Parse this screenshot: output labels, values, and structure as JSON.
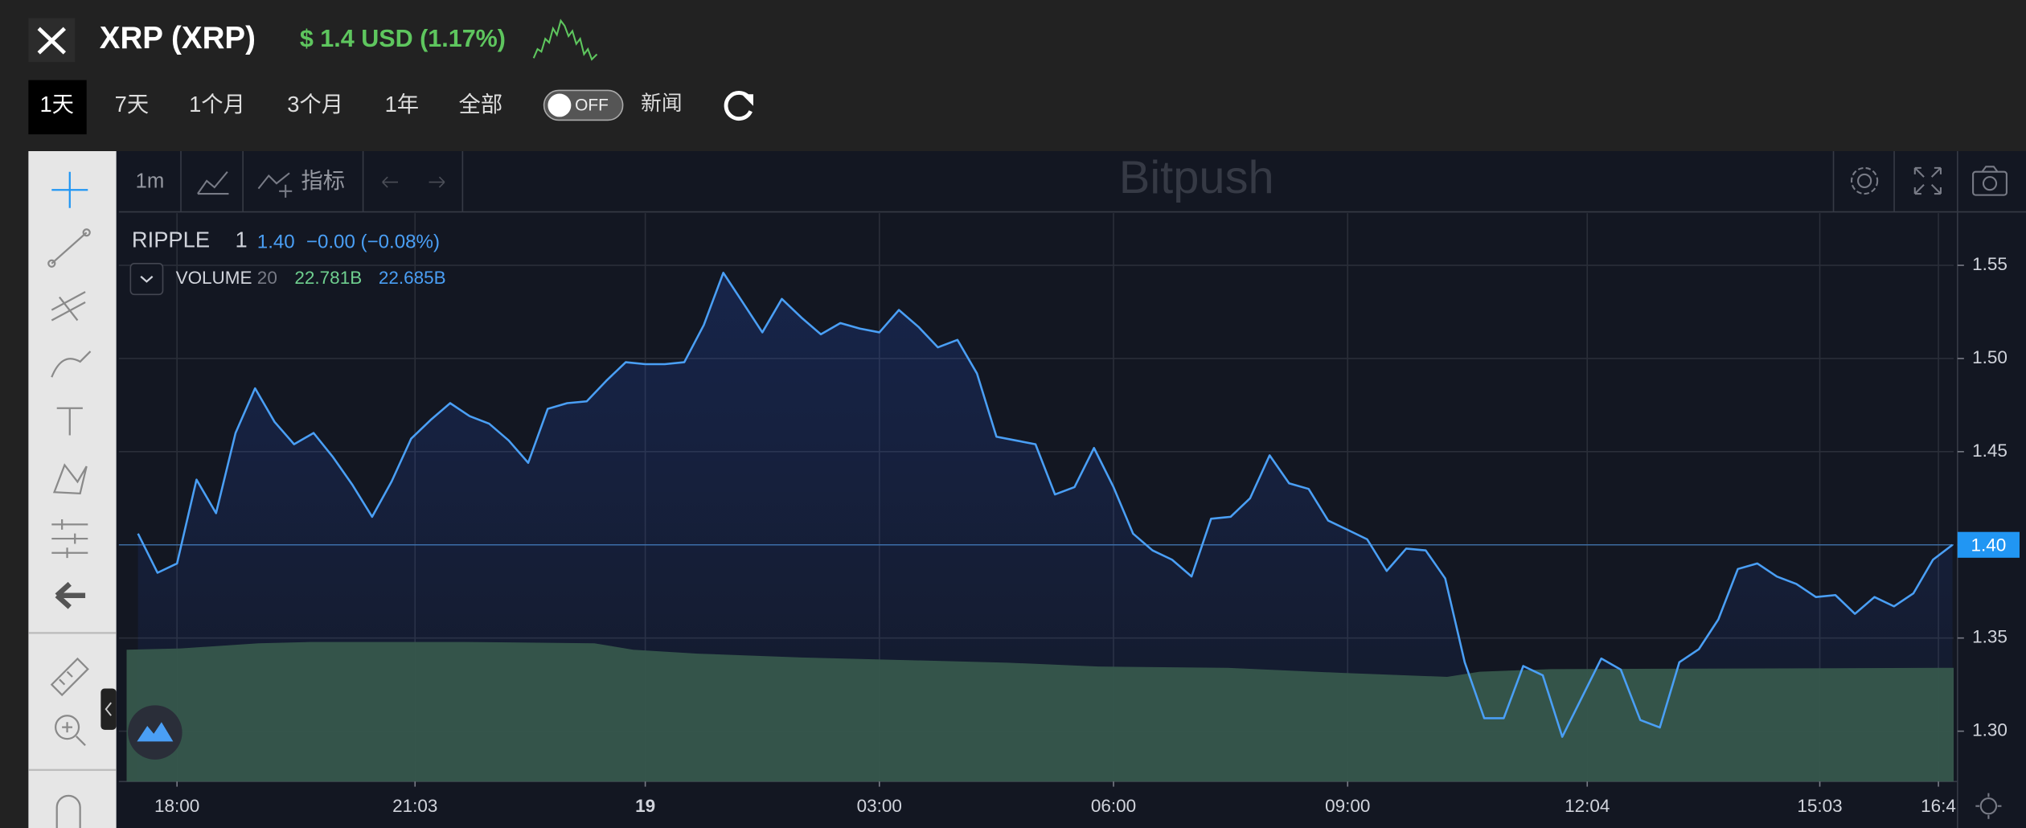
{
  "header": {
    "title": "XRP (XRP)",
    "price": "$ 1.4 USD (1.17%)"
  },
  "tabs": [
    "1天",
    "7天",
    "1个月",
    "3个月",
    "1年",
    "全部"
  ],
  "toggle": "OFF",
  "news": "新闻",
  "toolbar": {
    "interval": "1m",
    "indicators": "指标",
    "watermark": "Bitpush"
  },
  "legend": {
    "resolution": "1",
    "last": "1.40",
    "change": "−0.00 (−0.08%)",
    "volume": "VOLUME",
    "volume_period": "20",
    "volume_value": "22.781B",
    "volume_ma": "22.685B"
  },
  "chart_data": {
    "type": "line",
    "x": [
      17.5,
      17.75,
      18,
      18.25,
      18.5,
      18.75,
      19,
      19.25,
      19.5,
      19.75,
      20,
      20.25,
      20.5,
      20.75,
      21,
      21.25,
      21.5,
      21.75,
      22,
      22.25,
      22.5,
      22.75,
      23,
      23.25,
      23.5,
      23.75,
      24,
      24.25,
      24.5,
      24.75,
      25,
      25.25,
      25.5,
      25.75,
      26,
      26.25,
      26.5,
      26.75,
      27,
      27.25,
      27.5,
      27.75,
      28,
      28.25,
      28.5,
      28.75,
      29,
      29.25,
      29.5,
      29.75,
      30,
      30.25,
      30.5,
      30.75,
      31,
      31.25,
      31.5,
      31.75,
      32,
      32.25,
      32.5,
      32.75,
      33,
      33.25,
      33.5,
      33.75,
      34,
      34.25,
      34.5,
      34.75,
      35,
      35.25,
      35.5,
      35.75,
      36,
      36.25,
      36.5,
      36.75,
      37,
      37.25,
      37.5,
      37.75,
      38,
      38.25,
      38.5,
      38.75,
      39,
      39.25,
      39.5,
      39.75,
      40,
      40.25,
      40.5,
      40.75
    ],
    "series": [
      {
        "name": "RIPPLE",
        "color": "#4a9ff5",
        "values": [
          1.406,
          1.385,
          1.39,
          1.435,
          1.417,
          1.46,
          1.484,
          1.466,
          1.454,
          1.46,
          1.447,
          1.432,
          1.415,
          1.434,
          1.457,
          1.467,
          1.476,
          1.469,
          1.465,
          1.456,
          1.444,
          1.473,
          1.476,
          1.477,
          1.488,
          1.498,
          1.497,
          1.497,
          1.498,
          1.518,
          1.546,
          1.53,
          1.514,
          1.532,
          1.522,
          1.513,
          1.519,
          1.516,
          1.514,
          1.526,
          1.517,
          1.506,
          1.51,
          1.492,
          1.458,
          1.456,
          1.454,
          1.427,
          1.431,
          1.452,
          1.431,
          1.406,
          1.397,
          1.392,
          1.383,
          1.414,
          1.415,
          1.425,
          1.448,
          1.433,
          1.43,
          1.413,
          1.408,
          1.403,
          1.386,
          1.398,
          1.397,
          1.382,
          1.337,
          1.307,
          1.307,
          1.335,
          1.33,
          1.297,
          1.318,
          1.339,
          1.333,
          1.306,
          1.302,
          1.337,
          1.344,
          1.36,
          1.387,
          1.39,
          1.383,
          1.379,
          1.372,
          1.373,
          1.363,
          1.372,
          1.367,
          1.374,
          1.392,
          1.4
        ]
      }
    ],
    "current_label": "1.40",
    "xlim": [
      17.255,
      40.765
    ],
    "xticks": [
      {
        "value": 18,
        "label": "18:00"
      },
      {
        "value": 21.05,
        "label": "21:03"
      },
      {
        "value": 24,
        "label": "19"
      },
      {
        "value": 27,
        "label": "03:00"
      },
      {
        "value": 30,
        "label": "06:00"
      },
      {
        "value": 33,
        "label": "09:00"
      },
      {
        "value": 36.07,
        "label": "12:04"
      },
      {
        "value": 39.05,
        "label": "15:03"
      },
      {
        "value": 40.57,
        "label": "16:4"
      }
    ],
    "ylim": [
      1.273,
      1.578
    ],
    "yticks": [
      {
        "value": 1.3,
        "label": "1.30"
      },
      1.35,
      {
        "value": 1.4,
        "label": "1.40"
      },
      1.45,
      {
        "value": 1.5,
        "label": "1.50"
      },
      1.55
    ],
    "grid": true
  }
}
